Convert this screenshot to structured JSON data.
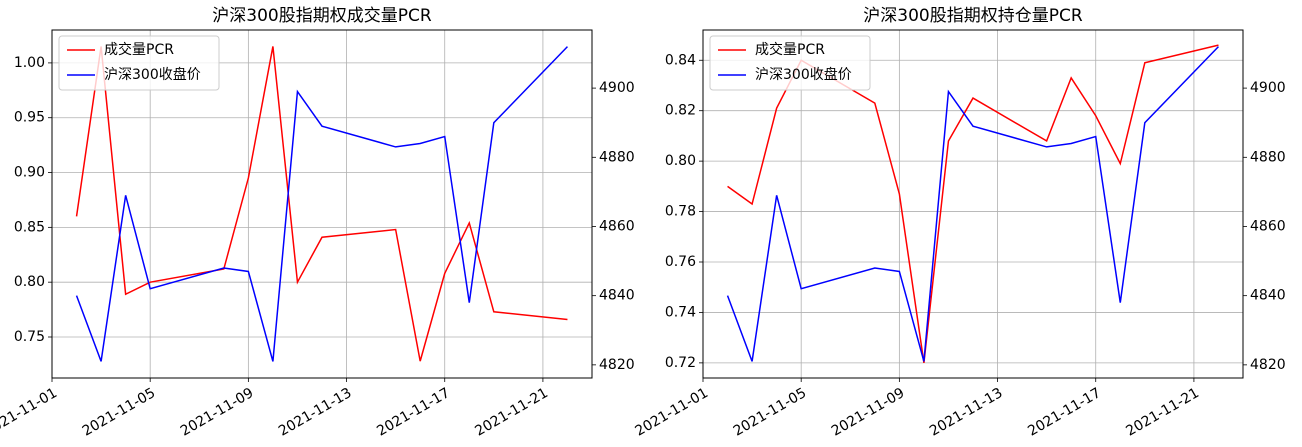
{
  "chart_data": [
    {
      "type": "line",
      "title": "沪深300股指期权成交量PCR",
      "x": [
        "2021-11-02",
        "2021-11-03",
        "2021-11-04",
        "2021-11-05",
        "2021-11-08",
        "2021-11-09",
        "2021-11-10",
        "2021-11-11",
        "2021-11-12",
        "2021-11-15",
        "2021-11-16",
        "2021-11-17",
        "2021-11-18",
        "2021-11-19",
        "2021-11-22"
      ],
      "xlim": [
        "2021-11-01",
        "2021-11-23"
      ],
      "xticks": [
        "2021-11-01",
        "2021-11-05",
        "2021-11-09",
        "2021-11-13",
        "2021-11-17",
        "2021-11-21"
      ],
      "ylim": [
        0.7126,
        1.03
      ],
      "yticks": [
        {
          "value": 0.75,
          "label": "0.75"
        },
        {
          "value": 0.8,
          "label": "0.80"
        },
        {
          "value": 0.85,
          "label": "0.85"
        },
        {
          "value": 0.9,
          "label": "0.90"
        },
        {
          "value": 0.95,
          "label": "0.95"
        },
        {
          "value": 1.0,
          "label": "1.00"
        }
      ],
      "y2lim": [
        4816.2,
        4916.8
      ],
      "y2ticks": [
        4820,
        4840,
        4860,
        4880,
        4900
      ],
      "grid": true,
      "legend": "upper left",
      "series": [
        {
          "name": "成交量PCR",
          "color": "#ff0000",
          "values": [
            0.86,
            1.015,
            0.789,
            0.8,
            0.812,
            0.895,
            1.015,
            0.8,
            0.841,
            0.848,
            0.728,
            0.808,
            0.854,
            0.773,
            0.766
          ]
        },
        {
          "name": "沪深300收盘价",
          "color": "#0000ff",
          "axis": "y2",
          "values": [
            4840,
            4821,
            4869,
            4842,
            4848,
            4847,
            4821,
            4899,
            4889,
            4883,
            4884,
            4886,
            4838,
            4890,
            4912
          ]
        }
      ]
    },
    {
      "type": "line",
      "title": "沪深300股指期权持仓量PCR",
      "x": [
        "2021-11-02",
        "2021-11-03",
        "2021-11-04",
        "2021-11-05",
        "2021-11-08",
        "2021-11-09",
        "2021-11-10",
        "2021-11-11",
        "2021-11-12",
        "2021-11-15",
        "2021-11-16",
        "2021-11-17",
        "2021-11-18",
        "2021-11-19",
        "2021-11-22"
      ],
      "xlim": [
        "2021-11-01",
        "2021-11-23"
      ],
      "xticks": [
        "2021-11-01",
        "2021-11-05",
        "2021-11-09",
        "2021-11-13",
        "2021-11-17",
        "2021-11-21"
      ],
      "ylim": [
        0.714,
        0.852
      ],
      "yticks": [
        0.72,
        0.74,
        0.76,
        0.78,
        {
          "value": 0.8,
          "label": "0.80"
        },
        0.82,
        0.84
      ],
      "y2lim": [
        4816.2,
        4916.8
      ],
      "y2ticks": [
        4820,
        4840,
        4860,
        4880,
        4900
      ],
      "grid": true,
      "legend": "upper left",
      "series": [
        {
          "name": "成交量PCR",
          "color": "#ff0000",
          "values": [
            0.79,
            0.783,
            0.821,
            0.84,
            0.823,
            0.787,
            0.72,
            0.808,
            0.825,
            0.808,
            0.833,
            0.818,
            0.799,
            0.839,
            0.846
          ]
        },
        {
          "name": "沪深300收盘价",
          "color": "#0000ff",
          "axis": "y2",
          "values": [
            4840,
            4821,
            4869,
            4842,
            4848,
            4847,
            4821,
            4899,
            4889,
            4883,
            4884,
            4886,
            4838,
            4890,
            4912
          ]
        }
      ]
    }
  ]
}
